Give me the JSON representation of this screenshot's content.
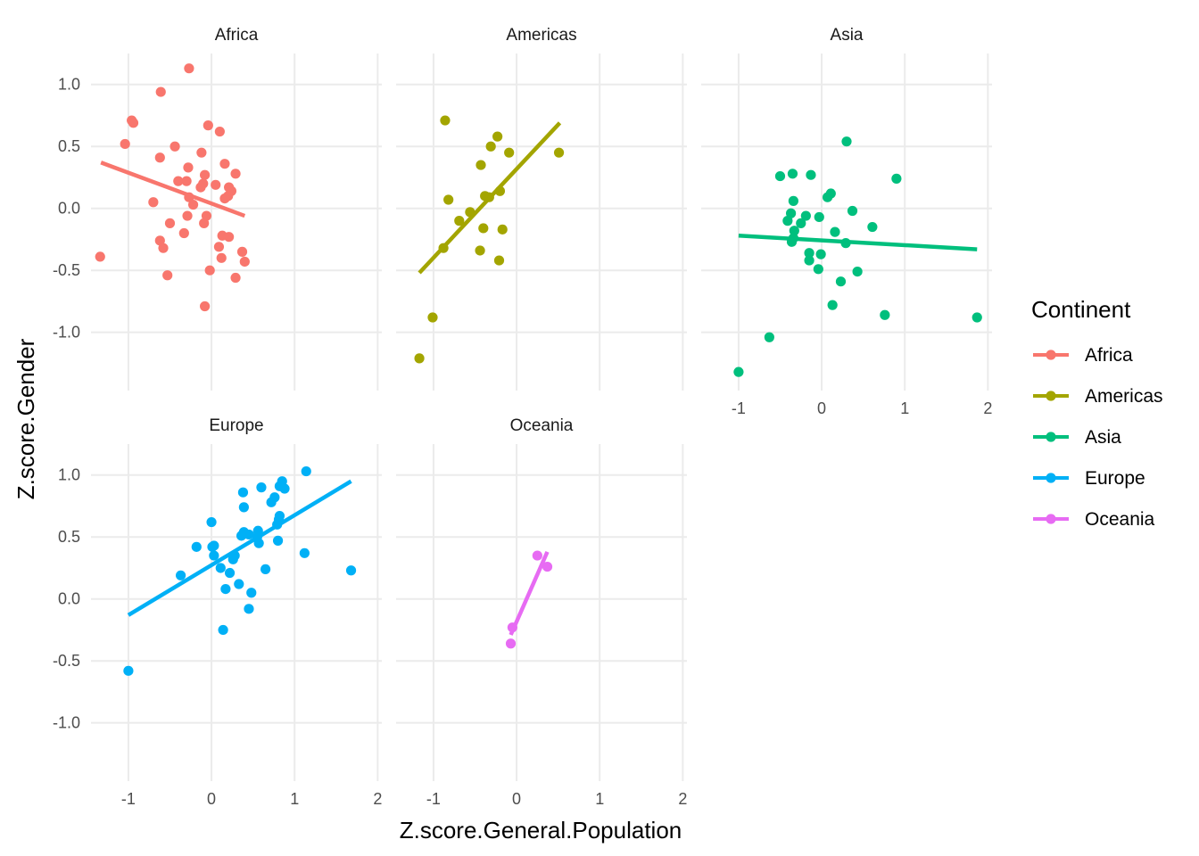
{
  "chart_data": {
    "type": "scatter",
    "subtype": "faceted scatter with linear regression lines",
    "xlabel": "Z.score.General.Population",
    "ylabel": "Z.score.Gender",
    "xlim": [
      -1.45,
      2.05
    ],
    "ylim": [
      -1.47,
      1.25
    ],
    "x_ticks": [
      -1,
      0,
      1,
      2
    ],
    "y_ticks": [
      -1.0,
      -0.5,
      0.0,
      0.5,
      1.0
    ],
    "x_tick_labels": [
      "-1",
      "0",
      "1",
      "2"
    ],
    "y_tick_labels": [
      "-1.0",
      "-0.5",
      "0.0",
      "0.5",
      "1.0"
    ],
    "grid": true,
    "legend": {
      "title": "Continent",
      "position": "right"
    },
    "facets": [
      {
        "name": "Africa",
        "color": "#F8766D",
        "line": {
          "x": [
            -1.33,
            0.4
          ],
          "y": [
            0.37,
            -0.06
          ]
        },
        "points": [
          [
            -0.27,
            1.13
          ],
          [
            -0.61,
            0.94
          ],
          [
            -0.96,
            0.71
          ],
          [
            -0.94,
            0.69
          ],
          [
            -0.04,
            0.67
          ],
          [
            0.1,
            0.62
          ],
          [
            -1.04,
            0.52
          ],
          [
            -0.44,
            0.5
          ],
          [
            -0.12,
            0.45
          ],
          [
            -0.62,
            0.41
          ],
          [
            0.16,
            0.36
          ],
          [
            -0.28,
            0.33
          ],
          [
            0.29,
            0.28
          ],
          [
            -0.08,
            0.27
          ],
          [
            -0.4,
            0.22
          ],
          [
            -0.3,
            0.22
          ],
          [
            -0.1,
            0.2
          ],
          [
            -0.13,
            0.17
          ],
          [
            0.05,
            0.19
          ],
          [
            0.21,
            0.17
          ],
          [
            0.24,
            0.14
          ],
          [
            0.2,
            0.1
          ],
          [
            0.16,
            0.08
          ],
          [
            -0.27,
            0.09
          ],
          [
            -0.22,
            0.03
          ],
          [
            -0.7,
            0.05
          ],
          [
            -0.06,
            -0.06
          ],
          [
            -0.29,
            -0.06
          ],
          [
            -0.5,
            -0.12
          ],
          [
            -0.09,
            -0.12
          ],
          [
            -0.33,
            -0.2
          ],
          [
            0.13,
            -0.22
          ],
          [
            0.21,
            -0.23
          ],
          [
            -0.62,
            -0.26
          ],
          [
            -0.58,
            -0.32
          ],
          [
            0.09,
            -0.31
          ],
          [
            0.37,
            -0.35
          ],
          [
            -1.34,
            -0.39
          ],
          [
            0.12,
            -0.4
          ],
          [
            0.4,
            -0.43
          ],
          [
            -0.02,
            -0.5
          ],
          [
            -0.53,
            -0.54
          ],
          [
            0.29,
            -0.56
          ],
          [
            -0.08,
            -0.79
          ]
        ]
      },
      {
        "name": "Americas",
        "color": "#A3A500",
        "line": {
          "x": [
            -1.17,
            0.52
          ],
          "y": [
            -0.52,
            0.69
          ]
        },
        "points": [
          [
            -0.86,
            0.71
          ],
          [
            -0.23,
            0.58
          ],
          [
            -0.31,
            0.5
          ],
          [
            -0.09,
            0.45
          ],
          [
            0.51,
            0.45
          ],
          [
            -0.43,
            0.35
          ],
          [
            -0.2,
            0.14
          ],
          [
            -0.38,
            0.1
          ],
          [
            -0.33,
            0.09
          ],
          [
            -0.82,
            0.07
          ],
          [
            -0.56,
            -0.03
          ],
          [
            -0.69,
            -0.1
          ],
          [
            -0.4,
            -0.16
          ],
          [
            -0.17,
            -0.17
          ],
          [
            -0.88,
            -0.32
          ],
          [
            -0.44,
            -0.34
          ],
          [
            -0.21,
            -0.42
          ],
          [
            -1.01,
            -0.88
          ],
          [
            -1.17,
            -1.21
          ]
        ]
      },
      {
        "name": "Asia",
        "color": "#00BF7D",
        "line": {
          "x": [
            -1.0,
            1.87
          ],
          "y": [
            -0.22,
            -0.33
          ]
        },
        "points": [
          [
            0.3,
            0.54
          ],
          [
            -0.5,
            0.26
          ],
          [
            -0.35,
            0.28
          ],
          [
            -0.13,
            0.27
          ],
          [
            0.9,
            0.24
          ],
          [
            0.11,
            0.12
          ],
          [
            0.07,
            0.09
          ],
          [
            -0.34,
            0.06
          ],
          [
            -0.37,
            -0.04
          ],
          [
            0.37,
            -0.02
          ],
          [
            -0.19,
            -0.06
          ],
          [
            -0.03,
            -0.07
          ],
          [
            -0.41,
            -0.1
          ],
          [
            -0.25,
            -0.12
          ],
          [
            0.61,
            -0.15
          ],
          [
            -0.33,
            -0.18
          ],
          [
            0.16,
            -0.19
          ],
          [
            -0.34,
            -0.24
          ],
          [
            -0.36,
            -0.27
          ],
          [
            0.29,
            -0.28
          ],
          [
            -0.15,
            -0.36
          ],
          [
            -0.01,
            -0.37
          ],
          [
            -0.15,
            -0.42
          ],
          [
            -0.04,
            -0.49
          ],
          [
            0.43,
            -0.51
          ],
          [
            0.23,
            -0.59
          ],
          [
            0.13,
            -0.78
          ],
          [
            0.76,
            -0.86
          ],
          [
            1.87,
            -0.88
          ],
          [
            -0.63,
            -1.04
          ],
          [
            -1.0,
            -1.32
          ]
        ]
      },
      {
        "name": "Europe",
        "color": "#00B0F6",
        "line": {
          "x": [
            -1.0,
            1.68
          ],
          "y": [
            -0.13,
            0.95
          ]
        },
        "points": [
          [
            1.14,
            1.03
          ],
          [
            0.85,
            0.95
          ],
          [
            0.82,
            0.91
          ],
          [
            0.88,
            0.89
          ],
          [
            0.6,
            0.9
          ],
          [
            0.38,
            0.86
          ],
          [
            0.76,
            0.82
          ],
          [
            0.72,
            0.78
          ],
          [
            0.39,
            0.74
          ],
          [
            0.82,
            0.67
          ],
          [
            0.81,
            0.64
          ],
          [
            0.79,
            0.6
          ],
          [
            0.0,
            0.62
          ],
          [
            0.56,
            0.55
          ],
          [
            0.39,
            0.54
          ],
          [
            0.45,
            0.52
          ],
          [
            0.36,
            0.51
          ],
          [
            0.55,
            0.5
          ],
          [
            0.8,
            0.47
          ],
          [
            0.57,
            0.45
          ],
          [
            0.03,
            0.43
          ],
          [
            0.01,
            0.42
          ],
          [
            -0.18,
            0.42
          ],
          [
            1.12,
            0.37
          ],
          [
            0.03,
            0.35
          ],
          [
            0.28,
            0.35
          ],
          [
            0.26,
            0.32
          ],
          [
            0.11,
            0.25
          ],
          [
            0.65,
            0.24
          ],
          [
            1.68,
            0.23
          ],
          [
            0.22,
            0.21
          ],
          [
            -0.37,
            0.19
          ],
          [
            0.33,
            0.12
          ],
          [
            0.17,
            0.08
          ],
          [
            0.48,
            0.05
          ],
          [
            0.45,
            -0.08
          ],
          [
            0.14,
            -0.25
          ],
          [
            -1.0,
            -0.58
          ]
        ]
      },
      {
        "name": "Oceania",
        "color": "#E76BF3",
        "line": {
          "x": [
            -0.07,
            0.37
          ],
          "y": [
            -0.29,
            0.38
          ]
        },
        "points": [
          [
            0.25,
            0.35
          ],
          [
            0.37,
            0.26
          ],
          [
            -0.05,
            -0.23
          ],
          [
            -0.07,
            -0.36
          ]
        ]
      }
    ]
  }
}
